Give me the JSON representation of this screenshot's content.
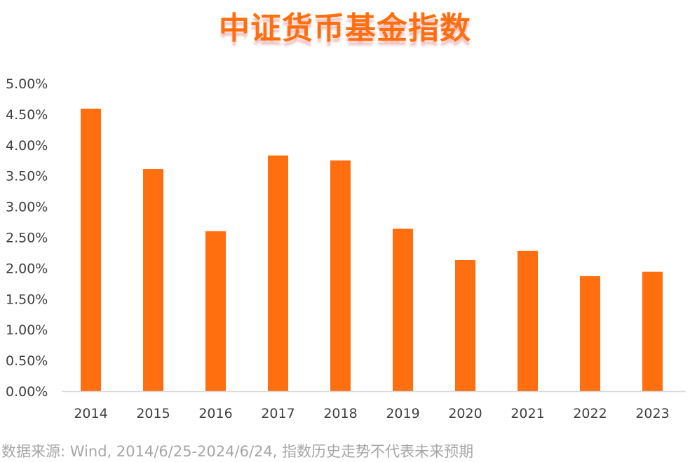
{
  "title": "中证货币基金指数",
  "source_note": "数据来源: Wind, 2014/6/25-2024/6/24, 指数历史走势不代表未来预期",
  "colors": {
    "bar": "#ff6f0f",
    "title": "#ff6f0f",
    "axis": "#d9d9d9",
    "tick_text": "#404040",
    "note": "#a6a6a6"
  },
  "chart_data": {
    "type": "bar",
    "title": "中证货币基金指数",
    "xlabel": "",
    "ylabel": "",
    "categories": [
      "2014",
      "2015",
      "2016",
      "2017",
      "2018",
      "2019",
      "2020",
      "2021",
      "2022",
      "2023"
    ],
    "values": [
      4.59,
      3.61,
      2.6,
      3.83,
      3.75,
      2.64,
      2.13,
      2.28,
      1.87,
      1.94
    ],
    "unit": "%",
    "ylim": [
      0,
      5
    ],
    "yticks": [
      "0.00%",
      "0.50%",
      "1.00%",
      "1.50%",
      "2.00%",
      "2.50%",
      "3.00%",
      "3.50%",
      "4.00%",
      "4.50%",
      "5.00%"
    ],
    "grid": false,
    "legend": "none"
  }
}
